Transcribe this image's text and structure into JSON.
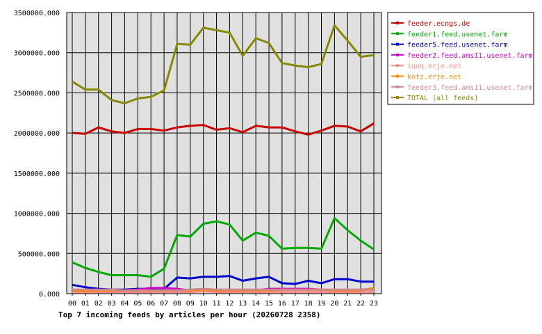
{
  "chart_data": {
    "type": "line",
    "title": "Top 7 incoming feeds by articles per hour (20260728 2358)",
    "xlabel": "",
    "ylabel": "",
    "ylim": [
      0,
      3500000
    ],
    "yticks": [
      "0.000",
      "500000.000",
      "1000000.000",
      "1500000.000",
      "2000000.000",
      "2500000.000",
      "3000000.000",
      "3500000.000"
    ],
    "ytick_values": [
      0,
      500000,
      1000000,
      1500000,
      2000000,
      2500000,
      3000000,
      3500000
    ],
    "x": [
      "00",
      "01",
      "02",
      "03",
      "04",
      "05",
      "06",
      "07",
      "08",
      "09",
      "10",
      "11",
      "12",
      "13",
      "14",
      "15",
      "16",
      "17",
      "18",
      "19",
      "20",
      "21",
      "22",
      "23"
    ],
    "grid": true,
    "legend_position": "right",
    "series": [
      {
        "name": "feeder.ecngs.de",
        "color": "#cc0000",
        "values": [
          2000000,
          1990000,
          2070000,
          2020000,
          2000000,
          2050000,
          2050000,
          2030000,
          2070000,
          2090000,
          2100000,
          2040000,
          2060000,
          2010000,
          2090000,
          2070000,
          2070000,
          2020000,
          1980000,
          2030000,
          2090000,
          2080000,
          2020000,
          2120000
        ]
      },
      {
        "name": "feeder1.feed.usenet.farm",
        "color": "#00aa00",
        "values": [
          390000,
          320000,
          270000,
          230000,
          230000,
          230000,
          210000,
          310000,
          730000,
          710000,
          870000,
          900000,
          860000,
          660000,
          760000,
          720000,
          560000,
          570000,
          570000,
          560000,
          940000,
          790000,
          660000,
          550000
        ]
      },
      {
        "name": "feeder5.feed.usenet.farm",
        "color": "#0000cc",
        "values": [
          110000,
          80000,
          60000,
          50000,
          50000,
          60000,
          60000,
          60000,
          200000,
          190000,
          210000,
          210000,
          220000,
          160000,
          190000,
          210000,
          130000,
          120000,
          160000,
          130000,
          180000,
          180000,
          150000,
          150000
        ]
      },
      {
        "name": "feeder2.feed.ams11.usenet.farm",
        "color": "#cc00cc",
        "values": [
          40000,
          40000,
          50000,
          40000,
          40000,
          50000,
          70000,
          70000,
          60000,
          40000,
          30000,
          40000,
          50000,
          40000,
          40000,
          60000,
          60000,
          60000,
          60000,
          50000,
          40000,
          40000,
          50000,
          60000
        ]
      },
      {
        "name": "iqoq.erje.net",
        "color": "#ff8888",
        "values": [
          20000,
          20000,
          20000,
          20000,
          20000,
          20000,
          20000,
          20000,
          20000,
          20000,
          30000,
          20000,
          20000,
          20000,
          20000,
          20000,
          20000,
          20000,
          20000,
          20000,
          20000,
          20000,
          20000,
          20000
        ]
      },
      {
        "name": "kotz.erje.net",
        "color": "#ff8800",
        "values": [
          30000,
          30000,
          40000,
          40000,
          40000,
          40000,
          40000,
          40000,
          40000,
          40000,
          50000,
          40000,
          40000,
          40000,
          40000,
          40000,
          50000,
          50000,
          50000,
          50000,
          40000,
          40000,
          40000,
          70000
        ]
      },
      {
        "name": "feeder3.feed.ams11.usenet.farm",
        "color": "#cc8888",
        "values": [
          50000,
          50000,
          50000,
          50000,
          40000,
          40000,
          40000,
          40000,
          40000,
          50000,
          60000,
          50000,
          50000,
          50000,
          50000,
          50000,
          50000,
          50000,
          50000,
          50000,
          50000,
          50000,
          50000,
          50000
        ]
      },
      {
        "name": "TOTAL (all feeds)",
        "color": "#888800",
        "values": [
          2640000,
          2540000,
          2540000,
          2410000,
          2370000,
          2430000,
          2450000,
          2530000,
          3110000,
          3100000,
          3310000,
          3280000,
          3250000,
          2960000,
          3180000,
          3120000,
          2870000,
          2840000,
          2820000,
          2860000,
          3340000,
          3150000,
          2950000,
          2970000
        ]
      }
    ]
  }
}
